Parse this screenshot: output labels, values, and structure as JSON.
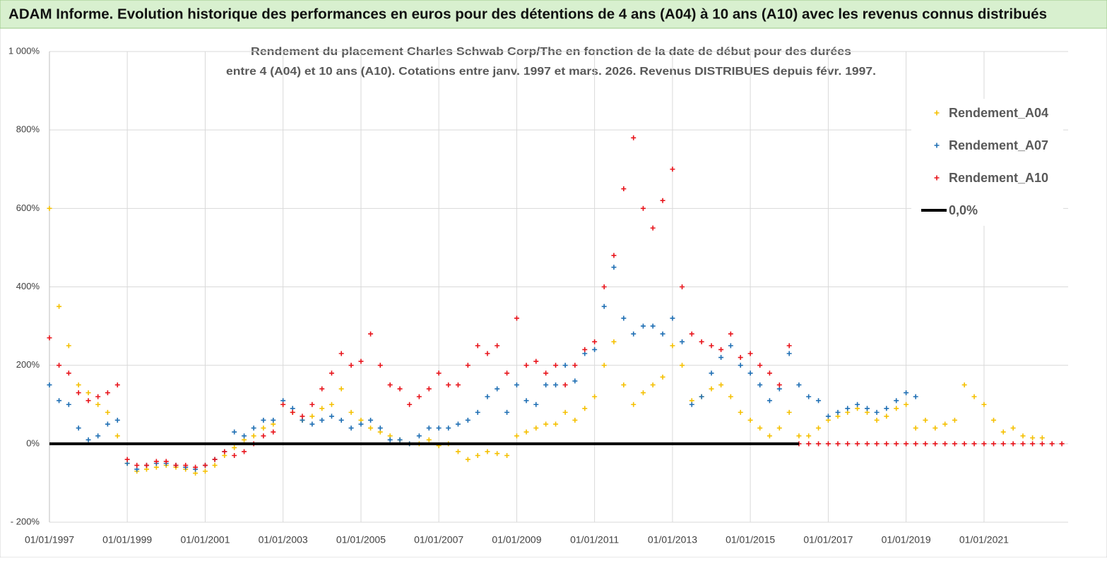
{
  "chart_data": {
    "type": "scatter",
    "title": "ADAM Informe. Evolution historique des performances en euros pour des détentions de 4 ans (A04) à 10 ans (A10) avec les revenus connus distribués",
    "subtitle": [
      "Rendement du placement Charles Schwab Corp/The en fonction de la date de début pour des durées",
      "entre 4 (A04) et 10 ans (A10).  Cotations entre janv. 1997 et mars. 2026. Revenus DISTRIBUES depuis févr. 1997."
    ],
    "x": [
      "1997-01-01",
      "1997-04-01",
      "1997-07-01",
      "1997-10-01",
      "1998-01-01",
      "1998-04-01",
      "1998-07-01",
      "1998-10-01",
      "1999-01-01",
      "1999-04-01",
      "1999-07-01",
      "1999-10-01",
      "2000-01-01",
      "2000-04-01",
      "2000-07-01",
      "2000-10-01",
      "2001-01-01",
      "2001-04-01",
      "2001-07-01",
      "2001-10-01",
      "2002-01-01",
      "2002-04-01",
      "2002-07-01",
      "2002-10-01",
      "2003-01-01",
      "2003-04-01",
      "2003-07-01",
      "2003-10-01",
      "2004-01-01",
      "2004-04-01",
      "2004-07-01",
      "2004-10-01",
      "2005-01-01",
      "2005-04-01",
      "2005-07-01",
      "2005-10-01",
      "2006-01-01",
      "2006-04-01",
      "2006-07-01",
      "2006-10-01",
      "2007-01-01",
      "2007-04-01",
      "2007-07-01",
      "2007-10-01",
      "2008-01-01",
      "2008-04-01",
      "2008-07-01",
      "2008-10-01",
      "2009-01-01",
      "2009-04-01",
      "2009-07-01",
      "2009-10-01",
      "2010-01-01",
      "2010-04-01",
      "2010-07-01",
      "2010-10-01",
      "2011-01-01",
      "2011-04-01",
      "2011-07-01",
      "2011-10-01",
      "2012-01-01",
      "2012-04-01",
      "2012-07-01",
      "2012-10-01",
      "2013-01-01",
      "2013-04-01",
      "2013-07-01",
      "2013-10-01",
      "2014-01-01",
      "2014-04-01",
      "2014-07-01",
      "2014-10-01",
      "2015-01-01",
      "2015-04-01",
      "2015-07-01",
      "2015-10-01",
      "2016-01-01",
      "2016-04-01",
      "2016-07-01",
      "2016-10-01",
      "2017-01-01",
      "2017-04-01",
      "2017-07-01",
      "2017-10-01",
      "2018-01-01",
      "2018-04-01",
      "2018-07-01",
      "2018-10-01",
      "2019-01-01",
      "2019-04-01",
      "2019-07-01",
      "2019-10-01",
      "2020-01-01",
      "2020-04-01",
      "2020-07-01",
      "2020-10-01",
      "2021-01-01",
      "2021-04-01",
      "2021-07-01",
      "2021-10-01",
      "2022-01-01",
      "2022-04-01",
      "2022-07-01",
      "2022-10-01",
      "2023-01-01"
    ],
    "series": [
      {
        "name": "Rendement_A04",
        "color": "#f5c000",
        "values": [
          600,
          350,
          250,
          150,
          130,
          100,
          80,
          20,
          -50,
          -70,
          -65,
          -60,
          -55,
          -60,
          -65,
          -75,
          -70,
          -55,
          -30,
          -10,
          10,
          20,
          40,
          50,
          100,
          80,
          60,
          70,
          90,
          100,
          140,
          80,
          60,
          40,
          30,
          20,
          10,
          0,
          0,
          10,
          -5,
          0,
          -20,
          -40,
          -30,
          -20,
          -25,
          -30,
          20,
          30,
          40,
          50,
          50,
          80,
          60,
          90,
          120,
          200,
          260,
          150,
          100,
          130,
          150,
          170,
          250,
          200,
          110,
          120,
          140,
          150,
          120,
          80,
          60,
          40,
          20,
          40,
          80,
          20,
          20,
          40,
          60,
          70,
          80,
          90,
          80,
          60,
          70,
          90,
          100,
          40,
          60,
          40,
          50,
          60,
          150,
          120,
          100,
          60,
          30,
          40,
          20,
          15,
          15,
          null,
          null
        ]
      },
      {
        "name": "Rendement_A07",
        "color": "#1f6fb4",
        "values": [
          150,
          110,
          100,
          40,
          10,
          20,
          50,
          60,
          -50,
          -65,
          -55,
          -50,
          -50,
          -55,
          -60,
          -65,
          -55,
          -40,
          -20,
          30,
          20,
          40,
          60,
          60,
          110,
          90,
          60,
          50,
          60,
          70,
          60,
          40,
          50,
          60,
          40,
          10,
          10,
          0,
          20,
          40,
          40,
          40,
          50,
          60,
          80,
          120,
          140,
          80,
          150,
          110,
          100,
          150,
          150,
          200,
          160,
          230,
          240,
          350,
          450,
          320,
          280,
          300,
          300,
          280,
          320,
          260,
          100,
          120,
          180,
          220,
          250,
          200,
          180,
          150,
          110,
          140,
          230,
          150,
          120,
          110,
          70,
          80,
          90,
          100,
          90,
          80,
          90,
          110,
          130,
          120,
          null,
          null,
          null,
          null,
          null,
          null,
          null,
          null,
          null,
          null,
          null,
          null,
          null,
          null,
          null
        ]
      },
      {
        "name": "Rendement_A10",
        "color": "#e8141b",
        "values": [
          270,
          200,
          180,
          130,
          110,
          120,
          130,
          150,
          -40,
          -55,
          -55,
          -45,
          -45,
          -55,
          -55,
          -60,
          -55,
          -40,
          -20,
          -30,
          -20,
          0,
          20,
          30,
          100,
          80,
          70,
          100,
          140,
          180,
          230,
          200,
          210,
          280,
          200,
          150,
          140,
          100,
          120,
          140,
          180,
          150,
          150,
          200,
          250,
          230,
          250,
          180,
          320,
          200,
          210,
          180,
          200,
          150,
          200,
          240,
          260,
          400,
          480,
          650,
          780,
          600,
          550,
          620,
          700,
          400,
          280,
          260,
          250,
          240,
          280,
          220,
          230,
          200,
          180,
          150,
          250,
          0,
          0,
          0,
          0,
          0,
          0,
          0,
          0,
          0,
          0,
          0,
          0,
          0,
          0,
          0,
          0,
          0,
          0,
          0,
          0,
          0,
          0,
          0,
          0,
          0,
          0,
          0,
          0
        ]
      }
    ],
    "reference_line": {
      "name": "0,0%",
      "color": "#000000",
      "x": [
        "1997-01-01",
        "2016-04-01"
      ],
      "values": [
        0,
        0
      ]
    },
    "xlim": [
      "1997-01-01",
      "2023-03-01"
    ],
    "xticks": [
      {
        "value": "1997-01-01",
        "label": "01/01/1997"
      },
      {
        "value": "1999-01-01",
        "label": "01/01/1999"
      },
      {
        "value": "2001-01-01",
        "label": "01/01/2001"
      },
      {
        "value": "2003-01-01",
        "label": "01/01/2003"
      },
      {
        "value": "2005-01-01",
        "label": "01/01/2005"
      },
      {
        "value": "2007-01-01",
        "label": "01/01/2007"
      },
      {
        "value": "2009-01-01",
        "label": "01/01/2009"
      },
      {
        "value": "2011-01-01",
        "label": "01/01/2011"
      },
      {
        "value": "2013-01-01",
        "label": "01/01/2013"
      },
      {
        "value": "2015-01-01",
        "label": "01/01/2015"
      },
      {
        "value": "2017-01-01",
        "label": "01/01/2017"
      },
      {
        "value": "2019-01-01",
        "label": "01/01/2019"
      },
      {
        "value": "2021-01-01",
        "label": "01/01/2021"
      }
    ],
    "ylim": [
      -200,
      1000
    ],
    "yticks": [
      {
        "value": -200,
        "label": "- 200%"
      },
      {
        "value": 0,
        "label": "0%"
      },
      {
        "value": 200,
        "label": "200%"
      },
      {
        "value": 400,
        "label": "400%"
      },
      {
        "value": 600,
        "label": "600%"
      },
      {
        "value": 800,
        "label": "800%"
      },
      {
        "value": 1000,
        "label": "1 000%"
      }
    ],
    "grid": true,
    "legend": "right"
  }
}
